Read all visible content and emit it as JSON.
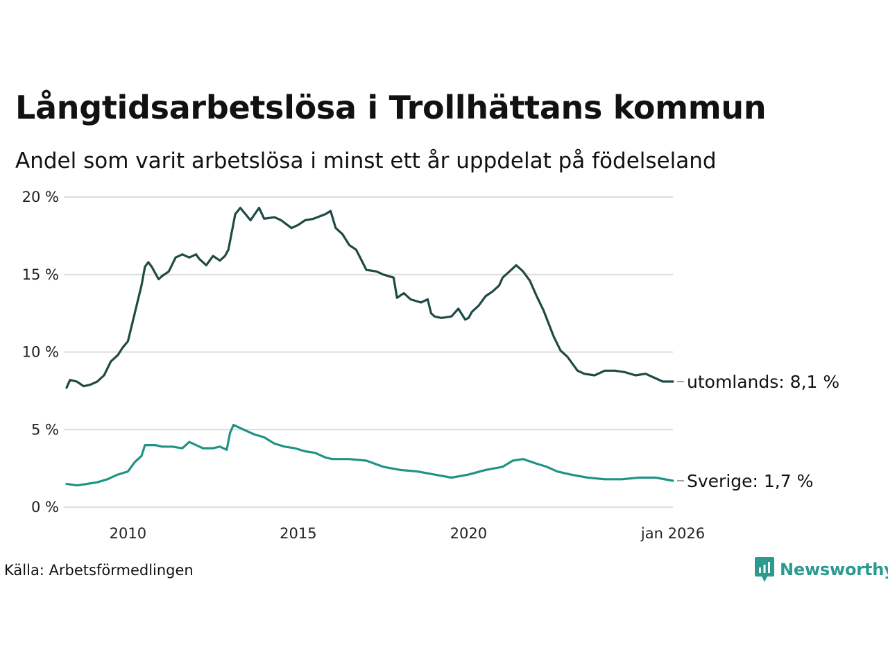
{
  "title": "Långtidsarbetslösa i Trollhättans kommun",
  "subtitle": "Andel som varit arbetslösa i minst ett år uppdelat på födelseland",
  "source": "Källa: Arbetsförmedlingen",
  "brand": "Newsworthy",
  "colors": {
    "utomlands": "#1f4a44",
    "sverige": "#1f9486",
    "grid": "#dddddd",
    "brand": "#2b9a8f"
  },
  "chart_data": {
    "type": "line",
    "title": "Långtidsarbetslösa i Trollhättans kommun",
    "xlabel": "",
    "ylabel": "",
    "xlim": [
      2008.2,
      2026.0
    ],
    "ylim": [
      0,
      20
    ],
    "y_ticks": [
      {
        "value": 0,
        "label": "0 %"
      },
      {
        "value": 5,
        "label": "5 %"
      },
      {
        "value": 10,
        "label": "10 %"
      },
      {
        "value": 15,
        "label": "15 %"
      },
      {
        "value": 20,
        "label": "20 %"
      }
    ],
    "x_ticks": [
      {
        "value": 2010.0,
        "label": "2010"
      },
      {
        "value": 2015.0,
        "label": "2015"
      },
      {
        "value": 2020.0,
        "label": "2020"
      },
      {
        "value": 2026.0,
        "label": "jan 2026"
      }
    ],
    "series": [
      {
        "name": "utomlands",
        "end_label": "utomlands: 8,1 %",
        "x": [
          2008.2,
          2008.3,
          2008.5,
          2008.7,
          2008.9,
          2009.1,
          2009.3,
          2009.5,
          2009.7,
          2009.85,
          2010.0,
          2010.2,
          2010.4,
          2010.5,
          2010.6,
          2010.7,
          2010.9,
          2011.0,
          2011.2,
          2011.4,
          2011.6,
          2011.8,
          2012.0,
          2012.1,
          2012.3,
          2012.5,
          2012.7,
          2012.85,
          2012.95,
          2013.15,
          2013.3,
          2013.6,
          2013.85,
          2014.0,
          2014.3,
          2014.5,
          2014.8,
          2015.0,
          2015.2,
          2015.45,
          2015.8,
          2015.95,
          2016.1,
          2016.3,
          2016.5,
          2016.7,
          2017.0,
          2017.3,
          2017.5,
          2017.8,
          2017.9,
          2018.1,
          2018.3,
          2018.6,
          2018.8,
          2018.9,
          2019.0,
          2019.2,
          2019.5,
          2019.7,
          2019.9,
          2020.0,
          2020.1,
          2020.3,
          2020.5,
          2020.7,
          2020.9,
          2021.0,
          2021.2,
          2021.4,
          2021.6,
          2021.8,
          2022.0,
          2022.2,
          2022.5,
          2022.7,
          2022.9,
          2023.2,
          2023.4,
          2023.7,
          2024.0,
          2024.3,
          2024.6,
          2024.9,
          2025.2,
          2025.5,
          2025.7,
          2026.0
        ],
        "y": [
          7.7,
          8.2,
          8.1,
          7.8,
          7.9,
          8.1,
          8.5,
          9.4,
          9.8,
          10.3,
          10.7,
          12.5,
          14.3,
          15.5,
          15.8,
          15.5,
          14.7,
          14.9,
          15.2,
          16.1,
          16.3,
          16.1,
          16.3,
          16.0,
          15.6,
          16.2,
          15.9,
          16.2,
          16.6,
          18.9,
          19.3,
          18.5,
          19.3,
          18.6,
          18.7,
          18.5,
          18.0,
          18.2,
          18.5,
          18.6,
          18.9,
          19.1,
          18.0,
          17.6,
          16.9,
          16.6,
          15.3,
          15.2,
          15.0,
          14.8,
          13.5,
          13.8,
          13.4,
          13.2,
          13.4,
          12.5,
          12.3,
          12.2,
          12.3,
          12.8,
          12.1,
          12.2,
          12.6,
          13.0,
          13.6,
          13.9,
          14.3,
          14.8,
          15.2,
          15.6,
          15.2,
          14.6,
          13.6,
          12.7,
          11.0,
          10.1,
          9.7,
          8.8,
          8.6,
          8.5,
          8.8,
          8.8,
          8.7,
          8.5,
          8.6,
          8.3,
          8.1,
          8.1
        ]
      },
      {
        "name": "Sverige",
        "end_label": "Sverige: 1,7 %",
        "x": [
          2008.2,
          2008.5,
          2008.8,
          2009.1,
          2009.4,
          2009.7,
          2010.0,
          2010.2,
          2010.4,
          2010.5,
          2010.8,
          2011.0,
          2011.3,
          2011.6,
          2011.8,
          2012.0,
          2012.2,
          2012.5,
          2012.7,
          2012.9,
          2013.0,
          2013.1,
          2013.4,
          2013.7,
          2014.0,
          2014.3,
          2014.6,
          2014.9,
          2015.2,
          2015.5,
          2015.8,
          2016.0,
          2016.5,
          2017.0,
          2017.5,
          2018.0,
          2018.5,
          2019.0,
          2019.5,
          2020.0,
          2020.5,
          2021.0,
          2021.3,
          2021.6,
          2022.0,
          2022.3,
          2022.6,
          2023.0,
          2023.5,
          2024.0,
          2024.5,
          2025.0,
          2025.5,
          2026.0
        ],
        "y": [
          1.5,
          1.4,
          1.5,
          1.6,
          1.8,
          2.1,
          2.3,
          2.9,
          3.3,
          4.0,
          4.0,
          3.9,
          3.9,
          3.8,
          4.2,
          4.0,
          3.8,
          3.8,
          3.9,
          3.7,
          4.8,
          5.3,
          5.0,
          4.7,
          4.5,
          4.1,
          3.9,
          3.8,
          3.6,
          3.5,
          3.2,
          3.1,
          3.1,
          3.0,
          2.6,
          2.4,
          2.3,
          2.1,
          1.9,
          2.1,
          2.4,
          2.6,
          3.0,
          3.1,
          2.8,
          2.6,
          2.3,
          2.1,
          1.9,
          1.8,
          1.8,
          1.9,
          1.9,
          1.7
        ]
      }
    ]
  }
}
